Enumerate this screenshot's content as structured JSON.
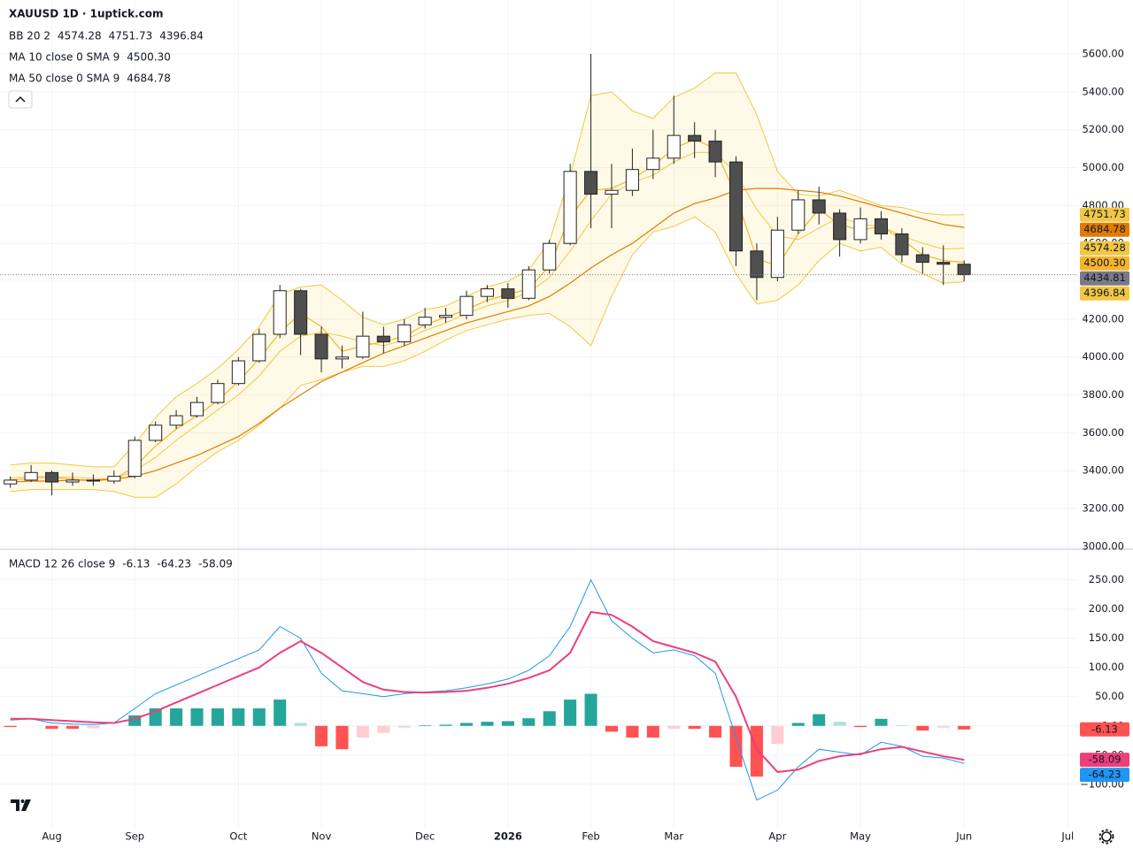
{
  "chart_data": [
    {
      "type": "candlestick",
      "title": "XAUUSD 1D · 1uptick.com",
      "categories": [
        null,
        null,
        "Aug",
        null,
        null,
        null,
        "Sep",
        null,
        null,
        null,
        null,
        "Oct",
        null,
        null,
        null,
        "Nov",
        null,
        null,
        null,
        null,
        "Dec",
        null,
        null,
        null,
        "2026",
        null,
        null,
        null,
        "Feb",
        null,
        null,
        null,
        "Mar",
        null,
        null,
        null,
        null,
        "Apr",
        null,
        null,
        null,
        "May",
        null,
        null,
        null,
        null,
        "Jun",
        null,
        null,
        null,
        null,
        "Jul"
      ],
      "open": [
        3330,
        3350,
        3390,
        3340,
        3350,
        3345,
        3370,
        3560,
        3640,
        3690,
        3760,
        3860,
        3980,
        4120,
        4350,
        4120,
        3990,
        4000,
        4110,
        4080,
        4170,
        4210,
        4220,
        4320,
        4360,
        4310,
        4460,
        4600,
        4980,
        4860,
        4880,
        4990,
        5050,
        5170,
        5140,
        5030,
        4560,
        4420,
        4670,
        4830,
        4760,
        4620,
        4730,
        4650,
        4540,
        4500,
        4490,
        null,
        null,
        null,
        null,
        null
      ],
      "high": [
        3370,
        3430,
        3400,
        3390,
        3380,
        3400,
        3580,
        3660,
        3720,
        3790,
        3880,
        4000,
        4150,
        4380,
        4360,
        4160,
        4060,
        4240,
        4160,
        4200,
        4260,
        4260,
        4350,
        4380,
        4390,
        4480,
        4620,
        5020,
        5600,
        5020,
        5100,
        5200,
        5380,
        5240,
        5200,
        5060,
        4600,
        4740,
        4880,
        4900,
        4780,
        4790,
        4770,
        4680,
        4580,
        4590,
        4510,
        null,
        null,
        null,
        null,
        null
      ],
      "low": [
        3310,
        3340,
        3270,
        3320,
        3320,
        3330,
        3360,
        3550,
        3620,
        3680,
        3750,
        3850,
        3970,
        4100,
        4010,
        3920,
        3940,
        3990,
        4020,
        4060,
        4150,
        4180,
        4200,
        4290,
        4260,
        4300,
        4440,
        4590,
        4680,
        4680,
        4850,
        4940,
        5020,
        5050,
        4950,
        4480,
        4300,
        4400,
        4650,
        4700,
        4530,
        4600,
        4620,
        4500,
        4440,
        4380,
        4400,
        null,
        null,
        null,
        null,
        null
      ],
      "close": [
        3350,
        3390,
        3340,
        3350,
        3345,
        3370,
        3560,
        3640,
        3690,
        3760,
        3860,
        3980,
        4120,
        4350,
        4120,
        3990,
        4000,
        4110,
        4080,
        4170,
        4210,
        4220,
        4320,
        4360,
        4310,
        4460,
        4600,
        4980,
        4860,
        4880,
        4990,
        5050,
        5170,
        5140,
        5030,
        4560,
        4420,
        4670,
        4830,
        4760,
        4620,
        4730,
        4650,
        4540,
        4500,
        4490,
        4434.81,
        null,
        null,
        null,
        null,
        null
      ],
      "up_color": "#ffffff",
      "down_color": "#4f4f4f",
      "outline_color": "#222222",
      "last_color": "#787b86",
      "ylim": [
        2990,
        5745
      ],
      "yticks": [
        {
          "value": 3000,
          "label": "3000.00"
        },
        {
          "value": 3200,
          "label": "3200.00"
        },
        {
          "value": 3400,
          "label": "3400.00"
        },
        {
          "value": 3600,
          "label": "3600.00"
        },
        {
          "value": 3800,
          "label": "3800.00"
        },
        {
          "value": 4000,
          "label": "4000.00"
        },
        {
          "value": 4200,
          "label": "4200.00"
        },
        {
          "value": 4400,
          "label": "4400.00"
        },
        {
          "value": 4600,
          "label": "4600.00"
        },
        {
          "value": 4800,
          "label": "4800.00"
        },
        {
          "value": 5000,
          "label": "5000.00"
        },
        {
          "value": 5200,
          "label": "5200.00"
        },
        {
          "value": 5400,
          "label": "5400.00"
        },
        {
          "value": 5600,
          "label": "5600.00"
        }
      ],
      "grid": true,
      "indicators": [
        {
          "name": "BB 20 2",
          "color": "#f2c744",
          "fill": "rgba(255,226,120,0.18)",
          "lines": [
            {
              "values": [
                3360,
                3370,
                3370,
                3365,
                3360,
                3355,
                3400,
                3470,
                3560,
                3640,
                3720,
                3800,
                3900,
                4030,
                4110,
                4130,
                4110,
                4080,
                4060,
                4090,
                4140,
                4180,
                4230,
                4270,
                4300,
                4340,
                4420,
                4560,
                4720,
                4860,
                4920,
                4960,
                5030,
                5080,
                5080,
                4970,
                4780,
                4640,
                4620,
                4680,
                4740,
                4700,
                4690,
                4640,
                4600,
                4570,
                4574.28,
                null,
                null,
                null,
                null,
                null
              ]
            },
            {
              "values": [
                3430,
                3440,
                3440,
                3430,
                3420,
                3420,
                3540,
                3680,
                3790,
                3860,
                3940,
                4040,
                4160,
                4330,
                4370,
                4380,
                4300,
                4210,
                4170,
                4200,
                4250,
                4270,
                4320,
                4370,
                4400,
                4460,
                4610,
                4960,
                5380,
                5400,
                5300,
                5260,
                5370,
                5420,
                5500,
                5500,
                5280,
                4980,
                4860,
                4850,
                4880,
                4840,
                4800,
                4790,
                4760,
                4750,
                4751.73,
                null,
                null,
                null,
                null,
                null
              ]
            },
            {
              "values": [
                3290,
                3300,
                3300,
                3300,
                3300,
                3290,
                3260,
                3260,
                3330,
                3420,
                3500,
                3560,
                3640,
                3730,
                3850,
                3880,
                3920,
                3950,
                3950,
                3980,
                4030,
                4090,
                4140,
                4170,
                4200,
                4220,
                4230,
                4160,
                4060,
                4320,
                4540,
                4660,
                4690,
                4740,
                4660,
                4440,
                4280,
                4300,
                4380,
                4510,
                4600,
                4560,
                4580,
                4490,
                4440,
                4390,
                4396.84,
                null,
                null,
                null,
                null,
                null
              ]
            }
          ]
        },
        {
          "name": "MA 10 close 0 SMA 9",
          "color": "#f5b52a",
          "values": [
            3350,
            3360,
            3365,
            3355,
            3345,
            3355,
            3420,
            3530,
            3620,
            3690,
            3770,
            3870,
            3990,
            4130,
            4230,
            4160,
            4030,
            4060,
            4080,
            4110,
            4170,
            4210,
            4250,
            4300,
            4330,
            4360,
            4480,
            4740,
            4880,
            4890,
            4940,
            5010,
            5100,
            5150,
            5100,
            4850,
            4520,
            4480,
            4650,
            4780,
            4700,
            4670,
            4690,
            4620,
            4540,
            4510,
            4500.3,
            null,
            null,
            null,
            null,
            null
          ],
          "value_labels": [
            null,
            null,
            null,
            null,
            null,
            null,
            null,
            null,
            null,
            null,
            null,
            null,
            null,
            null,
            null,
            null,
            null,
            null,
            null,
            null,
            null,
            null,
            null,
            null,
            null,
            null,
            null,
            null,
            null,
            null,
            null,
            null,
            null,
            null,
            null,
            null,
            null,
            null,
            null,
            null,
            null,
            null,
            null,
            null,
            null,
            null,
            "4500.30",
            null,
            null,
            null,
            null,
            null
          ]
        },
        {
          "name": "MA 50 close 0 SMA 9",
          "color": "#e07b00",
          "values": [
            3340,
            3345,
            3345,
            3350,
            3350,
            3355,
            3370,
            3400,
            3440,
            3480,
            3530,
            3580,
            3650,
            3730,
            3800,
            3870,
            3920,
            3970,
            4020,
            4060,
            4100,
            4140,
            4180,
            4210,
            4240,
            4270,
            4320,
            4390,
            4470,
            4540,
            4600,
            4680,
            4760,
            4810,
            4840,
            4880,
            4890,
            4890,
            4880,
            4870,
            4850,
            4820,
            4790,
            4760,
            4730,
            4700,
            4684.78,
            null,
            null,
            null,
            null,
            null
          ]
        }
      ]
    },
    {
      "type": "macd",
      "title": "MACD 12 26 close 9",
      "ylim": [
        -173,
        301
      ],
      "yticks": [
        {
          "value": -100,
          "label": "−100.00"
        },
        {
          "value": -50,
          "label": "−50.00"
        },
        {
          "value": 0,
          "label": "0.00"
        },
        {
          "value": 50,
          "label": "50.00"
        },
        {
          "value": 100,
          "label": "100.00"
        },
        {
          "value": 150,
          "label": "150.00"
        },
        {
          "value": 200,
          "label": "200.00"
        },
        {
          "value": 250,
          "label": "250.00"
        }
      ],
      "series": [
        {
          "kind": "bar",
          "color": "#ff5252",
          "colors": [
            "#26a69a",
            "#b2dfdb",
            "#ff5252",
            "#ffcdd2"
          ],
          "values": [
            -2,
            0,
            -5,
            -5,
            -4,
            0,
            18,
            30,
            30,
            30,
            30,
            30,
            30,
            45,
            5,
            -35,
            -40,
            -20,
            -12,
            -3,
            1,
            2,
            5,
            7,
            8,
            13,
            25,
            45,
            55,
            -10,
            -20,
            -20,
            -5,
            -5,
            -20,
            -70,
            -87,
            -31,
            5,
            20,
            7,
            -2,
            12,
            1,
            -8,
            -3,
            -6.13,
            null,
            null,
            null,
            null,
            null
          ]
        },
        {
          "kind": "line",
          "color": "#2196f3",
          "values": [
            10,
            12,
            5,
            3,
            2,
            5,
            30,
            55,
            70,
            85,
            100,
            115,
            130,
            170,
            150,
            90,
            60,
            55,
            50,
            55,
            58,
            60,
            65,
            72,
            80,
            95,
            120,
            170,
            250,
            180,
            150,
            125,
            130,
            120,
            90,
            -20,
            -127,
            -110,
            -70,
            -40,
            -45,
            -50,
            -28,
            -35,
            -52,
            -55,
            -64.23,
            null,
            null,
            null,
            null,
            null
          ]
        },
        {
          "kind": "line",
          "color": "#ec407a",
          "values": [
            12,
            12,
            10,
            8,
            6,
            5,
            12,
            25,
            40,
            55,
            70,
            85,
            100,
            125,
            145,
            125,
            100,
            75,
            62,
            58,
            57,
            58,
            60,
            65,
            72,
            82,
            95,
            125,
            195,
            190,
            170,
            145,
            135,
            125,
            110,
            50,
            -40,
            -79,
            -75,
            -60,
            -52,
            -48,
            -40,
            -36,
            -44,
            -52,
            -58.09,
            null,
            null,
            null,
            null,
            null
          ]
        }
      ]
    }
  ]
}
